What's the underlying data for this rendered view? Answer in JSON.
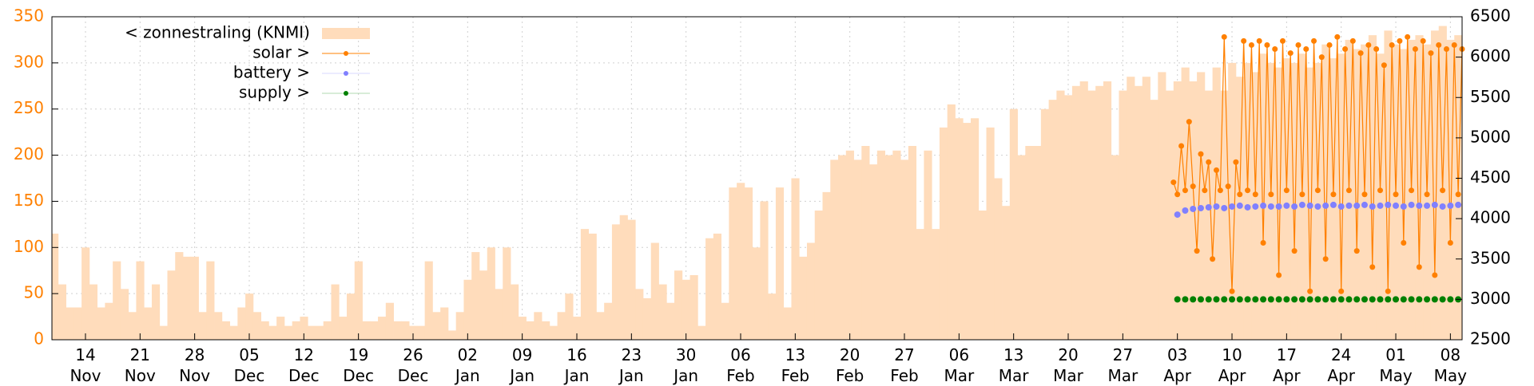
{
  "chart_data": {
    "type": "line",
    "xlim": [
      -4.3,
      176.5
    ],
    "xticks": [
      {
        "value": 0,
        "label": "14\nNov"
      },
      {
        "value": 7,
        "label": "21\nNov"
      },
      {
        "value": 14,
        "label": "28\nNov"
      },
      {
        "value": 21,
        "label": "05\nDec"
      },
      {
        "value": 28,
        "label": "12\nDec"
      },
      {
        "value": 35,
        "label": "19\nDec"
      },
      {
        "value": 42,
        "label": "26\nDec"
      },
      {
        "value": 49,
        "label": "02\nJan"
      },
      {
        "value": 56,
        "label": "09\nJan"
      },
      {
        "value": 63,
        "label": "16\nJan"
      },
      {
        "value": 70,
        "label": "23\nJan"
      },
      {
        "value": 77,
        "label": "30\nJan"
      },
      {
        "value": 84,
        "label": "06\nFeb"
      },
      {
        "value": 91,
        "label": "13\nFeb"
      },
      {
        "value": 98,
        "label": "20\nFeb"
      },
      {
        "value": 105,
        "label": "27\nFeb"
      },
      {
        "value": 112,
        "label": "06\nMar"
      },
      {
        "value": 119,
        "label": "13\nMar"
      },
      {
        "value": 126,
        "label": "20\nMar"
      },
      {
        "value": 133,
        "label": "27\nMar"
      },
      {
        "value": 140,
        "label": "03\nApr"
      },
      {
        "value": 147,
        "label": "10\nApr"
      },
      {
        "value": 154,
        "label": "17\nApr"
      },
      {
        "value": 161,
        "label": "24\nApr"
      },
      {
        "value": 168,
        "label": "01\nMay"
      },
      {
        "value": 175,
        "label": "08\nMay"
      }
    ],
    "ylim": [
      0,
      350
    ],
    "yticks": [
      0,
      50,
      100,
      150,
      200,
      250,
      300,
      350
    ],
    "y2lim": [
      2500,
      6500
    ],
    "y2ticks": [
      2500,
      3000,
      3500,
      4000,
      4500,
      5000,
      5500,
      6000,
      6500
    ],
    "grid": true,
    "legend": "top-left",
    "series": [
      {
        "name": "< zonnestraling (KNMI)",
        "style": "area",
        "color": "#ffdcbb",
        "axis": "y",
        "x": [
          -4,
          -3,
          -2,
          -1,
          0,
          1,
          2,
          3,
          4,
          5,
          6,
          7,
          8,
          9,
          10,
          11,
          12,
          13,
          14,
          15,
          16,
          17,
          18,
          19,
          20,
          21,
          22,
          23,
          24,
          25,
          26,
          27,
          28,
          29,
          30,
          31,
          32,
          33,
          34,
          35,
          36,
          37,
          38,
          39,
          40,
          41,
          42,
          43,
          44,
          45,
          46,
          47,
          48,
          49,
          50,
          51,
          52,
          53,
          54,
          55,
          56,
          57,
          58,
          59,
          60,
          61,
          62,
          63,
          64,
          65,
          66,
          67,
          68,
          69,
          70,
          71,
          72,
          73,
          74,
          75,
          76,
          77,
          78,
          79,
          80,
          81,
          82,
          83,
          84,
          85,
          86,
          87,
          88,
          89,
          90,
          91,
          92,
          93,
          94,
          95,
          96,
          97,
          98,
          99,
          100,
          101,
          102,
          103,
          104,
          105,
          106,
          107,
          108,
          109,
          110,
          111,
          112,
          113,
          114,
          115,
          116,
          117,
          118,
          119,
          120,
          121,
          122,
          123,
          124,
          125,
          126,
          127,
          128,
          129,
          130,
          131,
          132,
          133,
          134,
          135,
          136,
          137,
          138,
          139,
          140,
          141,
          142,
          143,
          144,
          145,
          146,
          147,
          148,
          149,
          150,
          151,
          152,
          153,
          154,
          155,
          156,
          157,
          158,
          159,
          160,
          161,
          162,
          163,
          164,
          165,
          166,
          167,
          168,
          169,
          170,
          171,
          172,
          173,
          174,
          175,
          176
        ],
        "values": [
          115,
          60,
          35,
          35,
          100,
          60,
          35,
          40,
          85,
          55,
          30,
          85,
          35,
          60,
          15,
          75,
          95,
          90,
          90,
          30,
          85,
          30,
          20,
          15,
          35,
          50,
          30,
          20,
          15,
          25,
          15,
          20,
          25,
          15,
          15,
          20,
          60,
          25,
          50,
          85,
          20,
          20,
          25,
          40,
          20,
          20,
          15,
          15,
          85,
          30,
          35,
          10,
          30,
          65,
          95,
          75,
          100,
          55,
          100,
          60,
          25,
          20,
          30,
          20,
          15,
          30,
          50,
          25,
          120,
          115,
          30,
          40,
          125,
          135,
          130,
          55,
          45,
          105,
          60,
          40,
          75,
          65,
          70,
          15,
          110,
          115,
          40,
          165,
          170,
          165,
          100,
          150,
          50,
          165,
          35,
          175,
          90,
          105,
          140,
          160,
          195,
          200,
          205,
          195,
          210,
          190,
          205,
          200,
          205,
          195,
          210,
          120,
          205,
          120,
          230,
          255,
          240,
          235,
          240,
          140,
          230,
          175,
          145,
          250,
          200,
          210,
          210,
          250,
          260,
          270,
          265,
          275,
          280,
          270,
          275,
          280,
          200,
          270,
          285,
          275,
          285,
          260,
          290,
          270,
          280,
          295,
          280,
          290,
          270,
          295,
          270,
          300,
          285,
          300,
          290,
          310,
          300,
          295,
          305,
          300,
          310,
          295,
          300,
          320,
          305,
          310,
          325,
          315,
          320,
          330,
          310,
          335,
          320,
          315,
          325,
          330,
          320,
          335,
          340,
          325,
          330
        ]
      },
      {
        "name": "solar >",
        "style": "linepoints",
        "color": "#ff8000",
        "axis": "y2",
        "x": [
          139.5,
          140,
          140.5,
          141,
          141.5,
          142,
          142.5,
          143,
          143.5,
          144,
          144.5,
          145,
          145.5,
          146,
          146.5,
          147,
          147.5,
          148,
          148.5,
          149,
          149.5,
          150,
          150.5,
          151,
          151.5,
          152,
          152.5,
          153,
          153.5,
          154,
          154.5,
          155,
          155.5,
          156,
          156.5,
          157,
          157.5,
          158,
          158.5,
          159,
          159.5,
          160,
          160.5,
          161,
          161.5,
          162,
          162.5,
          163,
          163.5,
          164,
          164.5,
          165,
          165.5,
          166,
          166.5,
          167,
          167.5,
          168,
          168.5,
          169,
          169.5,
          170,
          170.5,
          171,
          171.5,
          172,
          172.5,
          173,
          173.5,
          174,
          174.5,
          175,
          175.5,
          176,
          176.5
        ],
        "values": [
          4450,
          4300,
          4900,
          4350,
          5200,
          4400,
          3600,
          4800,
          4350,
          4700,
          3500,
          4600,
          4350,
          6250,
          4400,
          3100,
          4700,
          4300,
          6200,
          4350,
          6150,
          4300,
          6200,
          3700,
          6150,
          4300,
          6100,
          3300,
          6200,
          4350,
          6050,
          3600,
          6150,
          4300,
          6100,
          3100,
          6200,
          4350,
          6000,
          3500,
          6150,
          4300,
          6250,
          3100,
          6100,
          4350,
          6200,
          3600,
          6050,
          4300,
          6150,
          3400,
          6100,
          4350,
          5900,
          3100,
          6150,
          4300,
          6200,
          3700,
          6250,
          4350,
          6100,
          3400,
          6200,
          4300,
          6050,
          3300,
          6150,
          4350,
          6100,
          3700,
          6150,
          4300,
          6100
        ]
      },
      {
        "name": "battery >",
        "style": "points",
        "color": "#8080ff",
        "axis": "y2",
        "x": [
          140,
          141,
          142,
          143,
          144,
          145,
          146,
          147,
          148,
          149,
          150,
          151,
          152,
          153,
          154,
          155,
          156,
          157,
          158,
          159,
          160,
          161,
          162,
          163,
          164,
          165,
          166,
          167,
          168,
          169,
          170,
          171,
          172,
          173,
          174,
          175,
          176
        ],
        "values": [
          4050,
          4100,
          4120,
          4130,
          4140,
          4150,
          4130,
          4150,
          4160,
          4140,
          4150,
          4160,
          4150,
          4150,
          4160,
          4150,
          4170,
          4160,
          4150,
          4160,
          4170,
          4150,
          4160,
          4160,
          4170,
          4150,
          4160,
          4170,
          4160,
          4150,
          4170,
          4160,
          4160,
          4170,
          4150,
          4160,
          4170
        ]
      },
      {
        "name": "supply >",
        "style": "points",
        "color": "#008000",
        "axis": "y2",
        "x": [
          140,
          141,
          142,
          143,
          144,
          145,
          146,
          147,
          148,
          149,
          150,
          151,
          152,
          153,
          154,
          155,
          156,
          157,
          158,
          159,
          160,
          161,
          162,
          163,
          164,
          165,
          166,
          167,
          168,
          169,
          170,
          171,
          172,
          173,
          174,
          175,
          176
        ],
        "values": [
          3000,
          3000,
          3000,
          3000,
          3000,
          3000,
          3000,
          3000,
          3000,
          3000,
          3000,
          3000,
          3000,
          3000,
          3000,
          3000,
          3000,
          3000,
          3000,
          3000,
          3000,
          3000,
          3000,
          3000,
          3000,
          3000,
          3000,
          3000,
          3000,
          3000,
          3000,
          3000,
          3000,
          3000,
          3000,
          3000,
          3000
        ]
      }
    ]
  }
}
